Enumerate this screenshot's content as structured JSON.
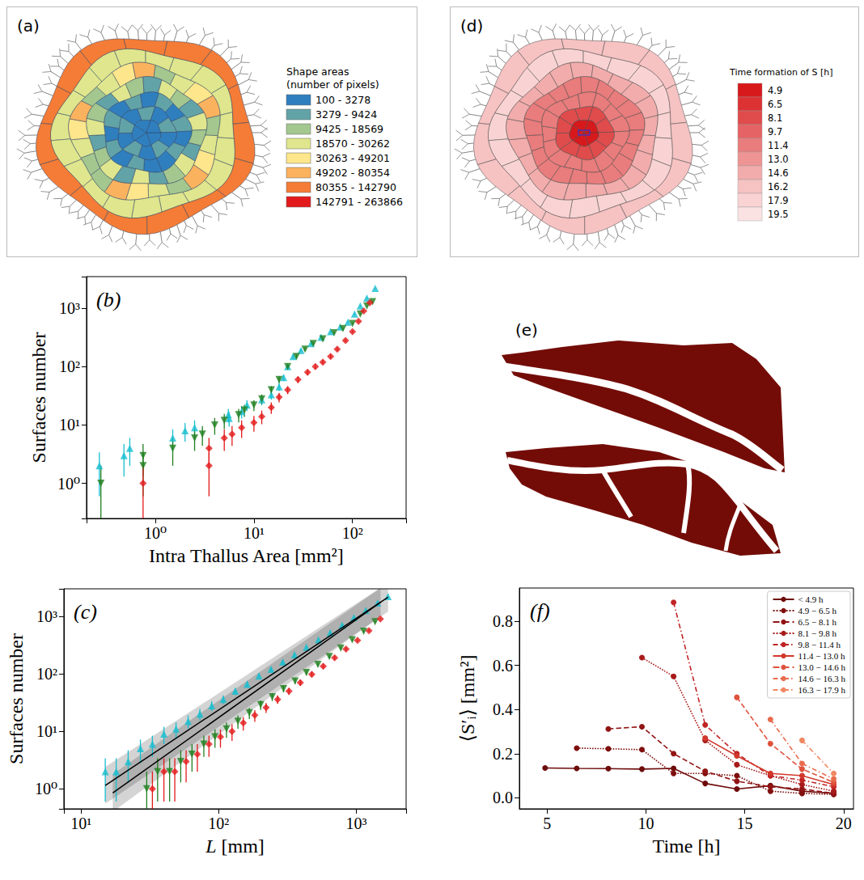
{
  "figures": {
    "a": {
      "label": "(a)",
      "type": "map",
      "legend_title": [
        "Shape areas",
        "(number of pixels)"
      ],
      "classes": [
        {
          "label": "100 - 3278",
          "color": "#2f7fbf"
        },
        {
          "label": "3279 - 9424",
          "color": "#62a3a8"
        },
        {
          "label": "9425 - 18569",
          "color": "#a3c78f"
        },
        {
          "label": "18570 - 30262",
          "color": "#dfe68d"
        },
        {
          "label": "30263 - 49201",
          "color": "#fde68b"
        },
        {
          "label": "49202 - 80354",
          "color": "#fbb25e"
        },
        {
          "label": "80355 - 142790",
          "color": "#f47c36"
        },
        {
          "label": "142791 - 263866",
          "color": "#e31a1c"
        }
      ]
    },
    "d": {
      "label": "(d)",
      "type": "map",
      "color_bar": {
        "title": "Time formation of S [h]",
        "ticks": [
          4.9,
          6.5,
          8.1,
          9.7,
          11.4,
          {
            "value": 13,
            "label": "13.0"
          },
          14.6,
          16.2,
          17.9,
          19.5
        ],
        "colors": [
          "#d7191c",
          "#dc3234",
          "#e04b4c",
          "#e56364",
          "#e97c7c",
          "#ee9494",
          "#f2acac",
          "#f6c2c2",
          "#f9d3d3",
          "#fbe2e2"
        ]
      }
    },
    "e": {
      "label": "(e)",
      "type": "shapes",
      "color": "#730c07"
    }
  },
  "chart_data": [
    {
      "panel": "(b)",
      "type": "scatter",
      "log": true,
      "grid": false,
      "x_label": "Intra Thallus Area [mm²]",
      "y_label": "Surfaces number",
      "xlim": [
        0.2,
        350
      ],
      "ylim": [
        0.25,
        3500
      ],
      "xticks": [
        {
          "value": 1,
          "label": "10⁰"
        },
        {
          "value": 10,
          "label": "10¹"
        },
        {
          "value": 100,
          "label": "10²"
        }
      ],
      "yticks": [
        {
          "value": 1,
          "label": "10⁰"
        },
        {
          "value": 10,
          "label": "10¹"
        },
        {
          "value": 100,
          "label": "10²"
        },
        {
          "value": 1000,
          "label": "10³"
        }
      ],
      "series": [
        {
          "color": "#17becf",
          "marker": "triangle_up",
          "x": [
            0.27,
            0.48,
            0.55,
            1.5,
            2.0,
            2.5,
            5.5,
            5.6,
            7.5,
            8.5,
            12,
            15,
            18,
            20,
            22,
            25,
            30,
            38,
            48,
            60,
            75,
            90,
            105,
            120,
            140,
            170
          ],
          "values": [
            2,
            3,
            4,
            6,
            8,
            9,
            15,
            13,
            17,
            22,
            27,
            33,
            45,
            65,
            100,
            150,
            190,
            250,
            320,
            400,
            480,
            580,
            800,
            1100,
            1500,
            2200
          ],
          "yerr": [
            1.4,
            1.7,
            2,
            2.4,
            2.8,
            3,
            3.9,
            3.6,
            4.1,
            4.7,
            5.2,
            5.7,
            6.7,
            8.1,
            10,
            12.2,
            13.8,
            15.8,
            17.9,
            20,
            21.9,
            24.1,
            28.3,
            33.2,
            38.7,
            46.9
          ]
        },
        {
          "color": "#1f7f1f",
          "marker": "triangle_down",
          "x": [
            0.28,
            0.75,
            0.75,
            1.5,
            2.5,
            3.0,
            4.0,
            5.0,
            7.0,
            8.0,
            10,
            12,
            15,
            18,
            22,
            27,
            33,
            40,
            50,
            65,
            80,
            100,
            120,
            140,
            160
          ],
          "values": [
            1,
            3,
            2,
            4,
            6,
            7,
            10,
            12,
            15,
            18,
            22,
            28,
            40,
            60,
            100,
            150,
            200,
            250,
            300,
            380,
            450,
            550,
            800,
            1100,
            1300
          ],
          "yerr": [
            1,
            1.7,
            1.4,
            2,
            2.4,
            2.6,
            3.2,
            3.5,
            3.9,
            4.2,
            4.7,
            5.3,
            6.3,
            7.7,
            10,
            12.2,
            14.1,
            15.8,
            17.3,
            19.5,
            21.2,
            23.5,
            28.3,
            33.2,
            36.1
          ]
        },
        {
          "color": "#e31a1c",
          "marker": "diamond",
          "x": [
            0.75,
            3.5,
            3.5,
            5.0,
            6.0,
            7.5,
            10,
            12,
            15,
            18,
            22,
            28,
            35,
            42,
            50,
            60,
            70,
            85,
            100,
            115,
            130,
            150
          ],
          "values": [
            1,
            4,
            2,
            6,
            7,
            9,
            11,
            14,
            20,
            30,
            40,
            60,
            80,
            100,
            120,
            150,
            200,
            280,
            400,
            600,
            900,
            1250
          ],
          "yerr": [
            1,
            2,
            1.4,
            2.4,
            2.6,
            3,
            3.3,
            3.7,
            4.5,
            5.5,
            6.3,
            7.7,
            8.9,
            10,
            11,
            12.2,
            14.1,
            16.7,
            20,
            24.5,
            30,
            35.4
          ]
        }
      ]
    },
    {
      "panel": "(c)",
      "type": "scatter",
      "log": true,
      "grid": false,
      "x_label": "L [mm]",
      "y_label": "Surfaces number",
      "xlim": [
        7.5,
        2300
      ],
      "ylim": [
        0.45,
        3000
      ],
      "xticks": [
        {
          "value": 10,
          "label": "10¹"
        },
        {
          "value": 100,
          "label": "10²"
        },
        {
          "value": 1000,
          "label": "10³"
        }
      ],
      "yticks": [
        {
          "value": 1,
          "label": "10⁰"
        },
        {
          "value": 10,
          "label": "10¹"
        },
        {
          "value": 100,
          "label": "10²"
        },
        {
          "value": 1000,
          "label": "10³"
        }
      ],
      "series": [
        {
          "color": "#17becf",
          "marker": "triangle_up",
          "x": [
            15,
            18,
            22,
            27,
            33,
            40,
            49,
            60,
            73,
            89,
            108,
            132,
            161,
            196,
            240,
            292,
            356,
            434,
            530,
            646,
            788,
            961,
            1172,
            1430,
            1700
          ],
          "values": [
            2,
            2,
            3,
            5,
            6,
            9,
            11,
            15,
            20,
            28,
            36,
            50,
            66,
            92,
            120,
            160,
            215,
            290,
            390,
            520,
            700,
            950,
            1260,
            1700,
            2200
          ],
          "yerr": [
            1.4,
            1.4,
            1.7,
            2.2,
            2.4,
            3,
            3.3,
            3.9,
            4.5,
            5.3,
            6,
            7.1,
            8.1,
            9.6,
            11,
            12.6,
            14.7,
            17,
            19.7,
            22.8,
            26.5,
            30.8,
            35.5,
            41.2,
            46.9
          ]
        },
        {
          "color": "#1f7f1f",
          "marker": "triangle_down",
          "x": [
            30,
            36,
            44,
            53,
            64,
            78,
            94,
            114,
            138,
            167,
            202,
            245,
            296,
            359,
            434,
            526,
            637,
            771,
            934,
            1131,
            1370
          ],
          "values": [
            1,
            2,
            2,
            3,
            4,
            6,
            8,
            11,
            15,
            21,
            29,
            40,
            55,
            75,
            105,
            145,
            200,
            280,
            390,
            550,
            800
          ],
          "yerr": [
            1,
            1.4,
            1.4,
            1.7,
            2,
            2.4,
            2.8,
            3.3,
            3.9,
            4.6,
            5.4,
            6.3,
            7.4,
            8.7,
            10.2,
            12,
            14.1,
            16.7,
            19.7,
            23.5,
            28.3
          ]
        },
        {
          "color": "#e31a1c",
          "marker": "diamond",
          "x": [
            33,
            40,
            48,
            58,
            70,
            85,
            103,
            125,
            151,
            183,
            221,
            268,
            324,
            392,
            475,
            575,
            696,
            842,
            1020,
            1235,
            1495
          ],
          "values": [
            1,
            2,
            2,
            3,
            4,
            6,
            8,
            10,
            14,
            19,
            26,
            36,
            50,
            70,
            98,
            135,
            190,
            270,
            380,
            560,
            900
          ],
          "yerr": [
            1,
            1.4,
            1.4,
            1.7,
            2,
            2.4,
            2.8,
            3.2,
            3.7,
            4.4,
            5.1,
            6,
            7.1,
            8.4,
            9.9,
            11.6,
            13.8,
            16.4,
            19.5,
            23.7,
            30
          ]
        }
      ],
      "fits": [
        {
          "color": "#000000",
          "x": [
            15,
            1700
          ],
          "values": [
            1.15,
            2150
          ],
          "lower": [
            0.55,
            1200
          ],
          "upper": [
            2.4,
            3800
          ]
        },
        {
          "color": "#000000",
          "x": [
            17,
            1500
          ],
          "values": [
            0.85,
            1750
          ],
          "lower": [
            0.4,
            1000
          ],
          "upper": [
            1.8,
            3100
          ]
        }
      ]
    },
    {
      "panel": "(f)",
      "type": "line",
      "grid": false,
      "legend": "upper right",
      "marker": "circle",
      "x_label": "Time [h]",
      "y_label": "⟨S′ᵢ⟩ [mm²]",
      "xlim": [
        3.6,
        20.5
      ],
      "ylim": [
        -0.05,
        0.95
      ],
      "xticks": [
        5,
        10,
        15,
        20
      ],
      "yticks": [
        {
          "value": 0,
          "label": "0.0"
        },
        0.2,
        0.4,
        0.6,
        0.8
      ],
      "series": [
        {
          "name": "< 4.9 h",
          "color": "#6e0b0b",
          "line_style": "solid",
          "x": [
            4.9,
            6.5,
            8.1,
            9.8,
            11.4,
            13.0,
            14.6,
            16.3,
            17.9,
            19.5
          ],
          "values": [
            0.135,
            0.133,
            0.132,
            0.13,
            0.133,
            0.065,
            0.04,
            0.055,
            0.03,
            0.02
          ]
        },
        {
          "name": "4.9 − 6.5 h",
          "color": "#7f0f0f",
          "line_style": "dotted",
          "x": [
            6.5,
            8.1,
            9.8,
            11.4,
            13.0,
            14.6,
            16.3,
            17.9,
            19.5
          ],
          "values": [
            0.225,
            0.222,
            0.218,
            0.11,
            0.11,
            0.1,
            0.03,
            0.02,
            0.015
          ]
        },
        {
          "name": "6.5 − 8.1 h",
          "color": "#921414",
          "line_style": "dashed",
          "x": [
            8.1,
            9.8,
            11.4,
            13.0,
            14.6,
            16.3,
            17.9,
            19.5
          ],
          "values": [
            0.312,
            0.322,
            0.2,
            0.12,
            0.075,
            0.05,
            0.04,
            0.02
          ]
        },
        {
          "name": "8.1 − 9.8 h",
          "color": "#a81a1a",
          "line_style": "dotted",
          "x": [
            9.8,
            11.4,
            13.0,
            14.6,
            16.3,
            17.9,
            19.5
          ],
          "values": [
            0.635,
            0.55,
            0.26,
            0.15,
            0.1,
            0.06,
            0.03
          ]
        },
        {
          "name": "9.8 − 11.4 h",
          "color": "#c02424",
          "line_style": "dashdot",
          "x": [
            11.4,
            13.0,
            14.6,
            16.3,
            17.9,
            19.5
          ],
          "values": [
            0.885,
            0.33,
            0.2,
            0.1,
            0.08,
            0.05
          ]
        },
        {
          "name": "11.4 − 13.0 h",
          "color": "#d2382c",
          "line_style": "solid",
          "x": [
            13.0,
            14.6,
            16.3,
            17.9,
            19.5
          ],
          "values": [
            0.27,
            0.19,
            0.11,
            0.1,
            0.06
          ]
        },
        {
          "name": "13.0 − 14.6 h",
          "color": "#df523d",
          "line_style": "dashed",
          "x": [
            14.6,
            16.3,
            17.9,
            19.5
          ],
          "values": [
            0.455,
            0.245,
            0.13,
            0.07
          ]
        },
        {
          "name": "14.6 − 16.3 h",
          "color": "#e96c4e",
          "line_style": "dashdot",
          "x": [
            16.3,
            17.9,
            19.5
          ],
          "values": [
            0.355,
            0.155,
            0.085
          ]
        },
        {
          "name": "16.3 − 17.9 h",
          "color": "#f08862",
          "line_style": "dashdot",
          "x": [
            17.9,
            19.5
          ],
          "values": [
            0.26,
            0.11
          ]
        }
      ]
    }
  ]
}
